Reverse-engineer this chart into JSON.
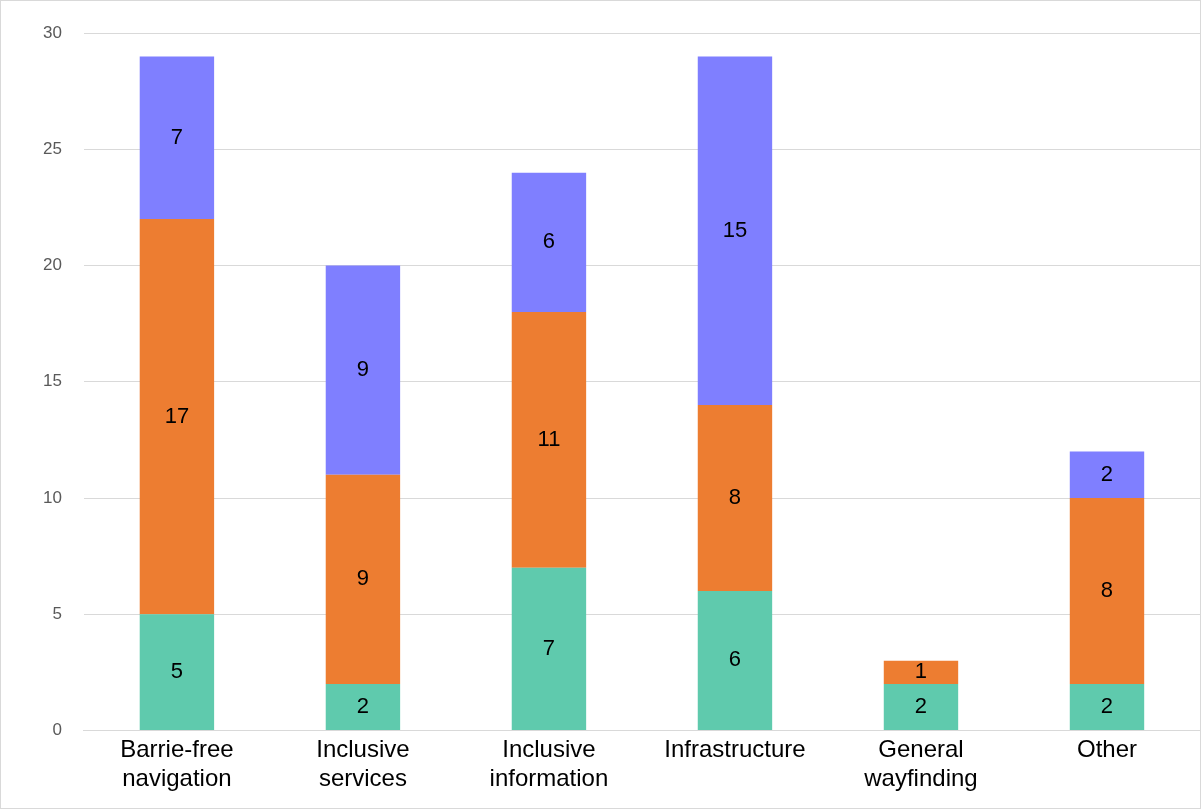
{
  "chart_data": {
    "type": "bar",
    "stacked": true,
    "categories": [
      "Barrie-free navigation",
      "Inclusive services",
      "Inclusive information",
      "Infrastructure",
      "General wayfinding",
      "Other"
    ],
    "series": [
      {
        "color": "#5fcaad",
        "values": [
          5,
          2,
          7,
          6,
          2,
          2
        ]
      },
      {
        "color": "#ed7d31",
        "values": [
          17,
          9,
          11,
          8,
          1,
          8
        ]
      },
      {
        "color": "#7f7fff",
        "values": [
          7,
          9,
          6,
          15,
          null,
          2
        ]
      }
    ],
    "ylim": [
      0,
      30
    ],
    "yticks": [
      0,
      5,
      10,
      15,
      20,
      25,
      30
    ],
    "grid": "y",
    "legend": false,
    "data_labels": true
  }
}
